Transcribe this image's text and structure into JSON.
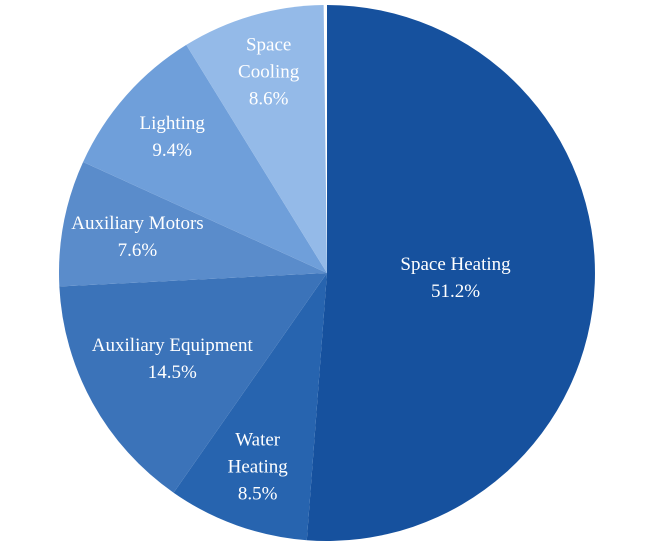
{
  "chart_data": {
    "type": "pie",
    "direction": "clockwise",
    "start_angle_deg": 0,
    "total_shown_pct": 99.8,
    "label_color": "#FFFFFF",
    "background": "#FFFFFF",
    "legend": "none",
    "slices": [
      {
        "label": "Space Heating",
        "value": 51.2,
        "value_label": "51.2%",
        "color": "#16519E",
        "label_lines": [
          "Space Heating",
          "51.2%"
        ],
        "label_radius": 0.48
      },
      {
        "label": "Water Heating",
        "value": 8.5,
        "value_label": "8.5%",
        "color": "#2764AF",
        "label_lines": [
          "Water",
          "Heating",
          "8.5%"
        ],
        "label_radius": 0.77
      },
      {
        "label": "Auxiliary Equipment",
        "value": 14.5,
        "value_label": "14.5%",
        "color": "#3B73B9",
        "label_lines": [
          "Auxiliary Equipment",
          "14.5%"
        ],
        "label_radius": 0.66
      },
      {
        "label": "Auxiliary Motors",
        "value": 7.6,
        "value_label": "7.6%",
        "color": "#5A8CCB",
        "label_lines": [
          "Auxiliary Motors",
          "7.6%"
        ],
        "label_radius": 0.72
      },
      {
        "label": "Lighting",
        "value": 9.4,
        "value_label": "9.4%",
        "color": "#6F9FDA",
        "label_lines": [
          "Lighting",
          "9.4%"
        ],
        "label_radius": 0.77
      },
      {
        "label": "Space Cooling",
        "value": 8.6,
        "value_label": "8.6%",
        "color": "#94BAE8",
        "label_lines": [
          "Space",
          "Cooling",
          "8.6%"
        ],
        "label_radius": 0.78
      }
    ]
  }
}
